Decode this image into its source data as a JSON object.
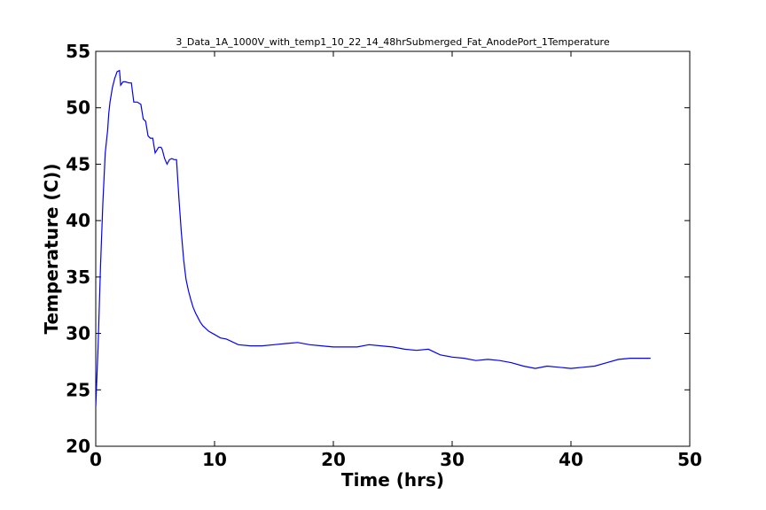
{
  "chart_data": {
    "type": "line",
    "title": "3_Data_1A_1000V_with_temp1_10_22_14_48hrSubmerged_Fat_AnodePort_1Temperature",
    "xlabel": "Time (hrs)",
    "ylabel": "Temperature (C))",
    "xlim": [
      0,
      50
    ],
    "ylim": [
      20,
      55
    ],
    "xticks": [
      "0",
      "10",
      "20",
      "30",
      "40",
      "50"
    ],
    "yticks": [
      "20",
      "25",
      "30",
      "35",
      "40",
      "45",
      "50",
      "55"
    ],
    "grid": false,
    "series": [
      {
        "color": "#0000ff",
        "x": [
          0,
          0.2,
          0.4,
          0.6,
          0.8,
          1.0,
          1.1,
          1.2,
          1.4,
          1.6,
          1.8,
          2.0,
          2.1,
          2.3,
          2.5,
          2.8,
          3.0,
          3.2,
          3.3,
          3.5,
          3.8,
          4.0,
          4.2,
          4.4,
          4.6,
          4.8,
          5.0,
          5.3,
          5.5,
          5.6,
          5.8,
          6.0,
          6.2,
          6.4,
          6.6,
          6.8,
          7.0,
          7.2,
          7.4,
          7.6,
          7.8,
          8.0,
          8.2,
          8.4,
          8.6,
          8.8,
          9.0,
          9.5,
          10.0,
          10.5,
          11.0,
          12.0,
          13.0,
          14.0,
          15.0,
          16.0,
          17.0,
          18.0,
          19.0,
          20.0,
          21.0,
          22.0,
          23.0,
          24.0,
          25.0,
          26.0,
          27.0,
          28.0,
          29.0,
          30.0,
          31.0,
          32.0,
          33.0,
          34.0,
          35.0,
          36.0,
          37.0,
          38.0,
          39.0,
          40.0,
          41.0,
          42.0,
          43.0,
          44.0,
          45.0,
          46.0,
          46.7
        ],
        "y": [
          23.5,
          29.0,
          36.0,
          41.5,
          46.0,
          48.0,
          49.5,
          50.5,
          51.8,
          52.6,
          53.2,
          53.3,
          52.0,
          52.3,
          52.3,
          52.2,
          52.2,
          50.5,
          50.5,
          50.5,
          50.3,
          49.0,
          48.8,
          47.5,
          47.3,
          47.3,
          46.0,
          46.5,
          46.5,
          46.3,
          45.5,
          45.0,
          45.4,
          45.5,
          45.4,
          45.4,
          42.0,
          39.0,
          36.5,
          34.8,
          33.8,
          33.0,
          32.3,
          31.8,
          31.4,
          31.0,
          30.7,
          30.2,
          29.9,
          29.6,
          29.5,
          29.0,
          28.9,
          28.9,
          29.0,
          29.1,
          29.2,
          29.0,
          28.9,
          28.8,
          28.8,
          28.8,
          29.0,
          28.9,
          28.8,
          28.6,
          28.5,
          28.6,
          28.1,
          27.9,
          27.8,
          27.6,
          27.7,
          27.6,
          27.4,
          27.1,
          26.9,
          27.1,
          27.0,
          26.9,
          27.0,
          27.1,
          27.4,
          27.7,
          27.8,
          27.8,
          27.8
        ]
      }
    ]
  }
}
